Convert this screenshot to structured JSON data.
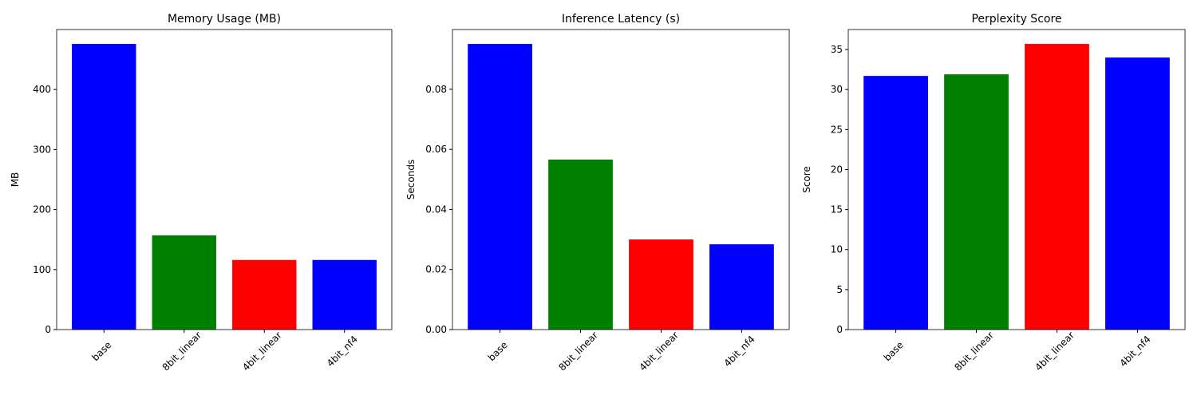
{
  "chart_data": [
    {
      "type": "bar",
      "title": "Memory Usage (MB)",
      "y_label": "MB",
      "categories": [
        "base",
        "8bit_linear",
        "4bit_linear",
        "4bit_nf4"
      ],
      "values": [
        476,
        157,
        116,
        116
      ],
      "colors": [
        "#0000ff",
        "#008000",
        "#ff0000",
        "#0000ff"
      ],
      "ylim": [
        0,
        500
      ],
      "yticks": [
        0,
        100,
        200,
        300,
        400
      ]
    },
    {
      "type": "bar",
      "title": "Inference Latency (s)",
      "y_label": "Seconds",
      "categories": [
        "base",
        "8bit_linear",
        "4bit_linear",
        "4bit_nf4"
      ],
      "values": [
        0.0951,
        0.0566,
        0.03,
        0.0284
      ],
      "colors": [
        "#0000ff",
        "#008000",
        "#ff0000",
        "#0000ff"
      ],
      "ylim": [
        0,
        0.0999
      ],
      "yticks": [
        {
          "value": 0,
          "label": "0.00"
        },
        {
          "value": 0.02,
          "label": "0.02"
        },
        {
          "value": 0.04,
          "label": "0.04"
        },
        {
          "value": 0.06,
          "label": "0.06"
        },
        {
          "value": 0.08,
          "label": "0.08"
        }
      ]
    },
    {
      "type": "bar",
      "title": "Perplexity Score",
      "y_label": "Score",
      "categories": [
        "base",
        "8bit_linear",
        "4bit_linear",
        "4bit_nf4"
      ],
      "values": [
        31.7,
        31.9,
        35.7,
        34.0
      ],
      "colors": [
        "#0000ff",
        "#008000",
        "#ff0000",
        "#0000ff"
      ],
      "ylim": [
        0,
        37.5
      ],
      "yticks": [
        0,
        5,
        10,
        15,
        20,
        25,
        30,
        35
      ]
    }
  ]
}
